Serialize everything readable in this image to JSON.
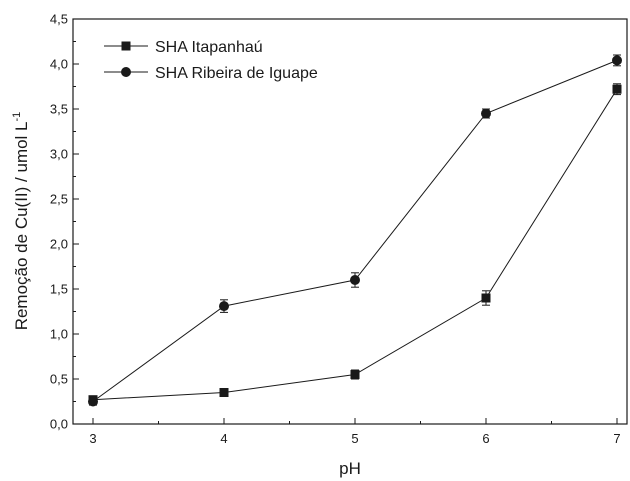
{
  "chart_data": {
    "type": "line",
    "xlabel": "pH",
    "ylabel": "Remoção de Cu(II) / umol L",
    "ylabel_sup": "-1",
    "xlim": [
      3,
      7
    ],
    "ylim": [
      0,
      4.5
    ],
    "x_ticks": [
      "3",
      "4",
      "5",
      "6",
      "7"
    ],
    "y_ticks": [
      "0,0",
      "0,5",
      "1,0",
      "1,5",
      "2,0",
      "2,5",
      "3,0",
      "3,5",
      "4,0",
      "4,5"
    ],
    "grid": false,
    "legend_position": "top-left",
    "x": [
      3,
      4,
      5,
      6,
      7
    ],
    "series": [
      {
        "name": "SHA Itapanhaú",
        "marker": "square",
        "values": [
          0.27,
          0.35,
          0.55,
          1.4,
          3.72
        ],
        "errors": [
          0.04,
          0.03,
          0.05,
          0.08,
          0.06
        ]
      },
      {
        "name": "SHA Ribeira de Iguape",
        "marker": "circle",
        "values": [
          0.25,
          1.31,
          1.6,
          3.45,
          4.04
        ],
        "errors": [
          0.04,
          0.07,
          0.08,
          0.05,
          0.06
        ]
      }
    ]
  }
}
